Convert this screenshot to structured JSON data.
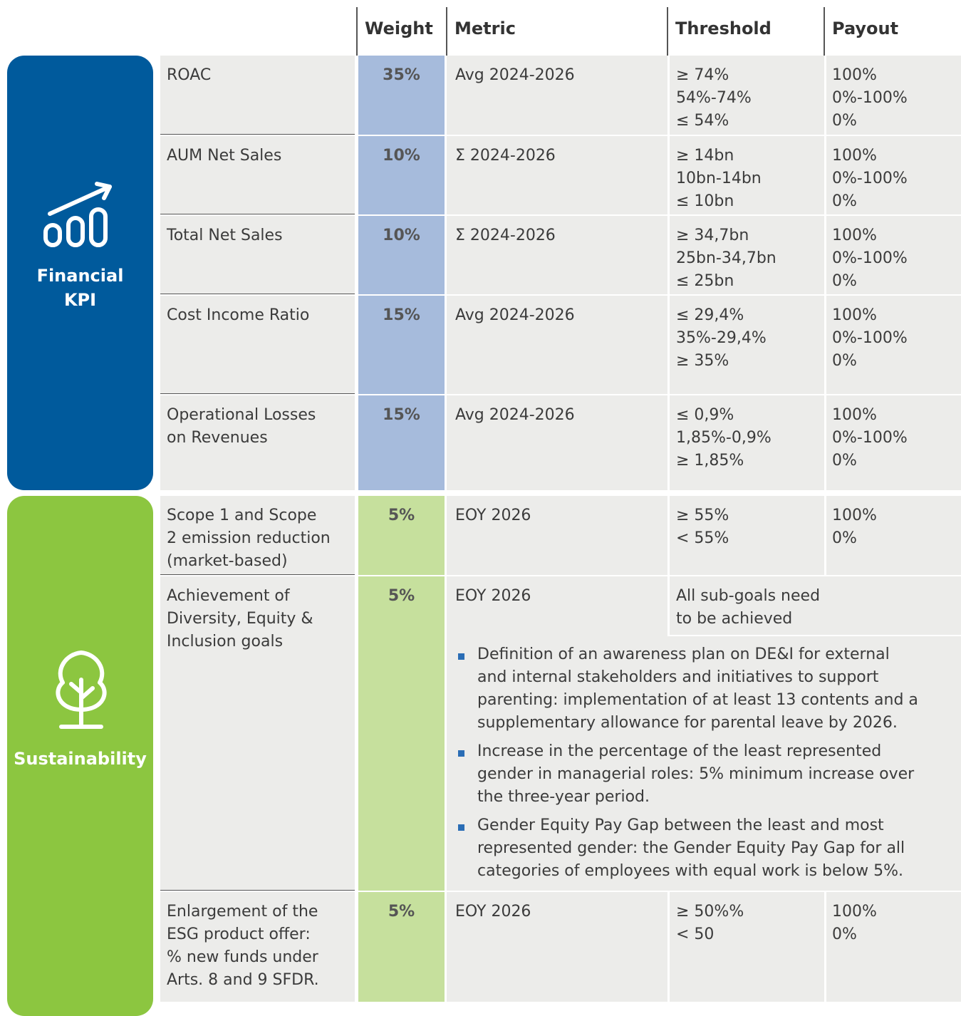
{
  "header": {
    "columns": [
      "Weight",
      "Metric",
      "Threshold",
      "Payout"
    ]
  },
  "sections": [
    {
      "label": [
        "Financial",
        "KPI"
      ],
      "rows": [
        {
          "name": [
            "ROAC"
          ],
          "weight": "35%",
          "metric": "Avg 2024-2026",
          "threshold": [
            "≥ 74%",
            "54%-74%",
            "≤ 54%"
          ],
          "payout": [
            "100%",
            "0%-100%",
            "0%"
          ]
        },
        {
          "name": [
            "AUM Net Sales"
          ],
          "weight": "10%",
          "metric": "Σ 2024-2026",
          "threshold": [
            "≥ 14bn",
            "10bn-14bn",
            "≤ 10bn"
          ],
          "payout": [
            "100%",
            "0%-100%",
            "0%"
          ]
        },
        {
          "name": [
            "Total Net Sales"
          ],
          "weight": "10%",
          "metric": "Σ 2024-2026",
          "threshold": [
            "≥ 34,7bn",
            "25bn-34,7bn",
            "≤ 25bn"
          ],
          "payout": [
            "100%",
            "0%-100%",
            "0%"
          ]
        },
        {
          "name": [
            "Cost Income Ratio"
          ],
          "weight": "15%",
          "metric": "Avg 2024-2026",
          "threshold": [
            "≤ 29,4%",
            "35%-29,4%",
            "≥ 35%"
          ],
          "payout": [
            "100%",
            "0%-100%",
            "0%"
          ]
        },
        {
          "name": [
            "Operational Losses",
            "on Revenues"
          ],
          "weight": "15%",
          "metric": "Avg 2024-2026",
          "threshold": [
            "≤ 0,9%",
            "1,85%-0,9%",
            "≥ 1,85%"
          ],
          "payout": [
            "100%",
            "0%-100%",
            "0%"
          ]
        }
      ]
    },
    {
      "label": [
        "Sustainability"
      ],
      "rows": [
        {
          "name": [
            "Scope 1 and Scope",
            "2 emission reduction",
            "(market-based)"
          ],
          "weight": "5%",
          "metric": "EOY 2026",
          "threshold": [
            "≥ 55%",
            "< 55%"
          ],
          "payout": [
            "100%",
            "0%"
          ]
        },
        {
          "name": [
            "Achievement of",
            "Diversity, Equity &",
            "Inclusion goals"
          ],
          "weight": "5%",
          "metric": "EOY 2026",
          "threshold": [
            "All sub-goals need",
            "to be achieved"
          ],
          "goals": [
            [
              "Definition of an awareness plan on DE&I for external",
              "and internal stakeholders and initiatives to support",
              "parenting: implementation of at least 13 contents and a",
              "supplementary allowance for parental leave by 2026."
            ],
            [
              "Increase in the percentage of the least represented",
              "gender in managerial roles: 5% minimum increase over",
              "the three-year period."
            ],
            [
              "Gender Equity Pay Gap between the least and most",
              "represented gender: the Gender Equity Pay Gap for all",
              "categories of employees with equal work is below 5%."
            ]
          ]
        },
        {
          "name": [
            "Enlargement of the",
            "ESG product offer:",
            "% new funds under",
            "Arts. 8 and 9 SFDR."
          ],
          "weight": "5%",
          "metric": "EOY 2026",
          "threshold": [
            "≥ 50%%",
            "< 50"
          ],
          "payout": [
            "100%",
            "0%"
          ]
        }
      ]
    }
  ]
}
